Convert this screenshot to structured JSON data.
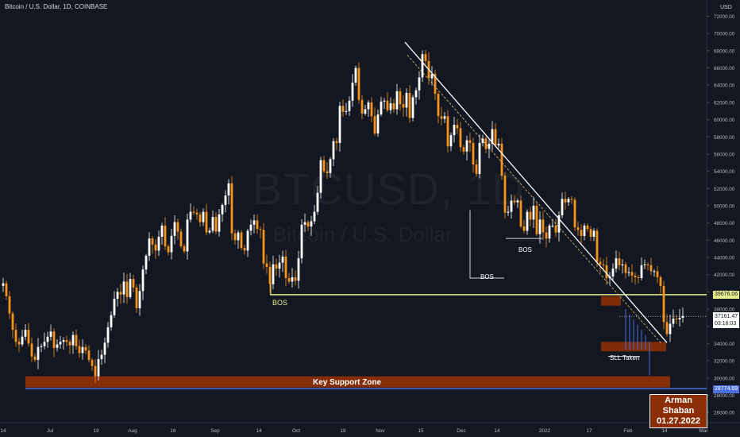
{
  "header": {
    "title": "Bitcoin / U.S. Dollar, 1D, COINBASE",
    "currency": "USD"
  },
  "watermark": {
    "symbol": "BTCUSD, 1D",
    "name": "Bitcoin / U.S. Dollar"
  },
  "price_tags": {
    "level": "39676.06",
    "current": "37161.47",
    "countdown": "03:16:03",
    "support": "28774.69"
  },
  "labels": {
    "bos_main": "BOS",
    "bos_1": "BOS",
    "bos_2": "BOS",
    "sll": "SLL Taken",
    "support_zone": "Key Support Zone"
  },
  "author": {
    "name": "Arman Shaban",
    "date": "01.27.2022"
  },
  "colors": {
    "up": "#ffffff",
    "down": "#f7931a",
    "level_line": "#e6ee8c",
    "zone": "#8b2e06",
    "support_line": "#4c6fe0",
    "background": "#131722"
  },
  "chart_data": {
    "type": "candlestick",
    "title": "Bitcoin / U.S. Dollar, 1D, COINBASE",
    "y_axis_ticks": [
      26000,
      28000,
      30000,
      32000,
      34000,
      36000,
      38000,
      40000,
      42000,
      44000,
      46000,
      48000,
      50000,
      52000,
      54000,
      56000,
      58000,
      60000,
      62000,
      64000,
      66000,
      68000,
      70000,
      72000
    ],
    "x_axis_ticks": [
      "14",
      "Jul",
      "19",
      "Aug",
      "16",
      "Sep",
      "14",
      "Oct",
      "18",
      "Nov",
      "15",
      "Dec",
      "14",
      "2022",
      "17",
      "Feb",
      "14",
      "Mar"
    ],
    "ylim": [
      25000,
      73000
    ],
    "closes": [
      41000,
      39500,
      37500,
      35600,
      34200,
      33900,
      34800,
      35600,
      34000,
      32500,
      32100,
      33600,
      33700,
      34200,
      34800,
      35400,
      33500,
      33900,
      34200,
      34400,
      34200,
      33800,
      35000,
      33700,
      32900,
      33600,
      33200,
      32100,
      31400,
      30200,
      32200,
      32700,
      34100,
      35900,
      37300,
      39200,
      40000,
      39700,
      41200,
      39400,
      41500,
      40500,
      38100,
      40100,
      42600,
      44200,
      46200,
      45500,
      44800,
      46400,
      47700,
      45300,
      44600,
      46500,
      48100,
      47000,
      45300,
      44700,
      48400,
      49300,
      49200,
      49000,
      48100,
      49300,
      46900,
      47100,
      48700,
      47000,
      49000,
      50100,
      51200,
      52600,
      46800,
      46000,
      46900,
      45100,
      44800,
      47100,
      47800,
      48300,
      47300,
      47200,
      43300,
      42900,
      40900,
      43200,
      42700,
      43400,
      44100,
      41600,
      41200,
      41700,
      41300,
      43900,
      47800,
      48100,
      47600,
      48200,
      49300,
      51500,
      55300,
      54000,
      53800,
      55400,
      57500,
      57300,
      61600,
      60900,
      61000,
      62200,
      64300,
      66000,
      62300,
      60700,
      61200,
      62000,
      60400,
      58400,
      60600,
      62100,
      62200,
      61100,
      61900,
      61200,
      63300,
      61800,
      61400,
      63100,
      60200,
      62600,
      63400,
      64900,
      67600,
      66800,
      64800,
      65300,
      63000,
      60400,
      60100,
      60400,
      56900,
      58200,
      59400,
      59000,
      56800,
      56300,
      57600,
      57300,
      54800,
      53700,
      57300,
      57800,
      56600,
      57200,
      58900,
      57000,
      57200,
      53500,
      49200,
      49300,
      50600,
      50400,
      50600,
      47600,
      47100,
      49300,
      48400,
      50000,
      46700,
      48400,
      46900,
      46200,
      47700,
      47700,
      46900,
      48900,
      50800,
      50400,
      50800,
      50700,
      47500,
      47200,
      46500,
      47700,
      47300,
      46400,
      47100,
      43500,
      43200,
      43100,
      41600,
      41800,
      42700,
      43900,
      43100,
      43200,
      42200,
      42300,
      41900,
      41700,
      41600,
      43100,
      43200,
      43100,
      42400,
      42400,
      41700,
      40700,
      36500,
      35100,
      36300,
      36900,
      36800,
      37000,
      37200
    ]
  }
}
